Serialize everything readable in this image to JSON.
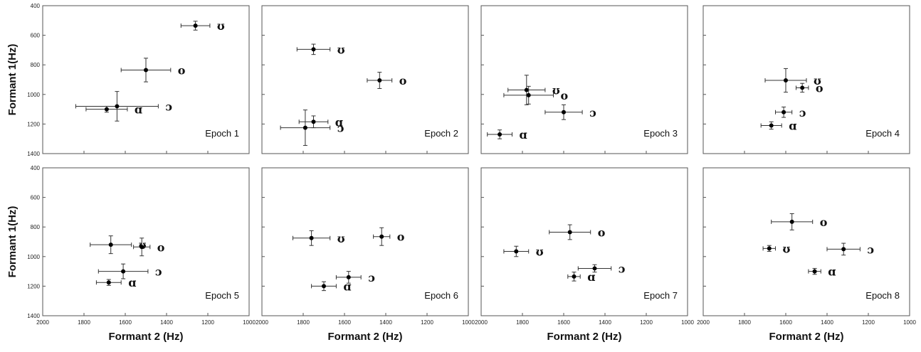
{
  "chart_data": {
    "type": "scatter",
    "x_axis": {
      "label": "Formant 2 (Hz)",
      "range": [
        2000,
        1000
      ],
      "reversed": true,
      "ticks": [
        2000,
        1800,
        1600,
        1400,
        1200,
        1000
      ]
    },
    "y_axis": {
      "label": "Formant 1(Hz)",
      "range": [
        400,
        1400
      ],
      "reversed": true,
      "ticks": [
        400,
        600,
        800,
        1000,
        1200,
        1400
      ]
    },
    "error_bars": true,
    "grid": false,
    "panels": [
      {
        "title": "Epoch 1",
        "points": [
          {
            "label": "ʊ",
            "x": 1260,
            "y": 535,
            "xerr": 70,
            "yerr": 30
          },
          {
            "label": "o",
            "x": 1500,
            "y": 835,
            "xerr": 120,
            "yerr": 80
          },
          {
            "label": "ɔ",
            "x": 1640,
            "y": 1080,
            "xerr": 200,
            "yerr": 100
          },
          {
            "label": "ɑ",
            "x": 1690,
            "y": 1100,
            "xerr": 100,
            "yerr": 20
          }
        ]
      },
      {
        "title": "Epoch 2",
        "points": [
          {
            "label": "ʊ",
            "x": 1750,
            "y": 695,
            "xerr": 80,
            "yerr": 35
          },
          {
            "label": "o",
            "x": 1430,
            "y": 905,
            "xerr": 60,
            "yerr": 55
          },
          {
            "label": "ɑ",
            "x": 1750,
            "y": 1185,
            "xerr": 70,
            "yerr": 40
          },
          {
            "label": "ɔ",
            "x": 1790,
            "y": 1225,
            "xerr": 120,
            "yerr": 120
          }
        ]
      },
      {
        "title": "Epoch 3",
        "points": [
          {
            "label": "ʊ",
            "x": 1780,
            "y": 970,
            "xerr": 90,
            "yerr": 100
          },
          {
            "label": "o",
            "x": 1770,
            "y": 1005,
            "xerr": 120,
            "yerr": 60
          },
          {
            "label": "ɔ",
            "x": 1600,
            "y": 1120,
            "xerr": 90,
            "yerr": 50
          },
          {
            "label": "ɑ",
            "x": 1910,
            "y": 1270,
            "xerr": 60,
            "yerr": 30
          }
        ]
      },
      {
        "title": "Epoch 4",
        "points": [
          {
            "label": "ʊ",
            "x": 1600,
            "y": 905,
            "xerr": 100,
            "yerr": 80
          },
          {
            "label": "o",
            "x": 1520,
            "y": 955,
            "xerr": 30,
            "yerr": 30
          },
          {
            "label": "ɔ",
            "x": 1610,
            "y": 1120,
            "xerr": 40,
            "yerr": 35
          },
          {
            "label": "ɑ",
            "x": 1670,
            "y": 1210,
            "xerr": 50,
            "yerr": 25
          }
        ]
      },
      {
        "title": "Epoch 5",
        "points": [
          {
            "label": "ʊ",
            "x": 1670,
            "y": 920,
            "xerr": 100,
            "yerr": 60
          },
          {
            "label": "o",
            "x": 1520,
            "y": 935,
            "xerr": 40,
            "yerr": 60
          },
          {
            "label": "ɔ",
            "x": 1610,
            "y": 1100,
            "xerr": 120,
            "yerr": 50
          },
          {
            "label": "ɑ",
            "x": 1680,
            "y": 1175,
            "xerr": 60,
            "yerr": 20
          }
        ]
      },
      {
        "title": "Epoch 6",
        "points": [
          {
            "label": "ʊ",
            "x": 1760,
            "y": 875,
            "xerr": 90,
            "yerr": 50
          },
          {
            "label": "o",
            "x": 1420,
            "y": 865,
            "xerr": 40,
            "yerr": 60
          },
          {
            "label": "ɔ",
            "x": 1580,
            "y": 1140,
            "xerr": 60,
            "yerr": 40
          },
          {
            "label": "ɑ",
            "x": 1700,
            "y": 1200,
            "xerr": 60,
            "yerr": 30
          }
        ]
      },
      {
        "title": "Epoch 7",
        "points": [
          {
            "label": "o",
            "x": 1570,
            "y": 835,
            "xerr": 100,
            "yerr": 50
          },
          {
            "label": "ʊ",
            "x": 1830,
            "y": 965,
            "xerr": 60,
            "yerr": 35
          },
          {
            "label": "ɔ",
            "x": 1450,
            "y": 1080,
            "xerr": 80,
            "yerr": 25
          },
          {
            "label": "ɑ",
            "x": 1550,
            "y": 1135,
            "xerr": 30,
            "yerr": 30
          }
        ]
      },
      {
        "title": "Epoch 8",
        "points": [
          {
            "label": "o",
            "x": 1570,
            "y": 765,
            "xerr": 100,
            "yerr": 55
          },
          {
            "label": "ʊ",
            "x": 1680,
            "y": 945,
            "xerr": 30,
            "yerr": 20
          },
          {
            "label": "ɔ",
            "x": 1320,
            "y": 950,
            "xerr": 80,
            "yerr": 40
          },
          {
            "label": "ɑ",
            "x": 1460,
            "y": 1100,
            "xerr": 30,
            "yerr": 20
          }
        ]
      }
    ]
  }
}
